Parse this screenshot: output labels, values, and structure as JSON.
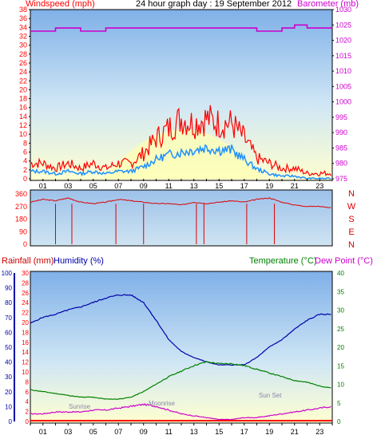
{
  "header": {
    "windspeed_label": "Windspeed (mph)",
    "title": "24 hour graph day : 19 September 2012",
    "barometer_label": "Barometer (mb)"
  },
  "mid_header": {
    "rainfall_label": "Rainfall (mm)",
    "humidity_label": "Humidity (%)",
    "temperature_label": "Temperature (°C)",
    "dewpoint_label": "Dew Point (°C)"
  },
  "annotations": {
    "sunrise": "Sunrise",
    "sunset": "Sun Set",
    "moonrise": "Moonrise",
    "sun_label": "Sun ",
    "sun_label2": "Rise"
  },
  "colors": {
    "wind_axis": "#ff0000",
    "baro_axis": "#cc00cc",
    "humidity": "#0000aa",
    "temperature": "#008000",
    "dewpoint": "#008000",
    "rain": "#cc00cc",
    "gust": "#ff0000",
    "avg_wind": "#1e90ff",
    "wind_dir": "#dd0000",
    "rain_bar": "#ff0000"
  },
  "chart_data": [
    {
      "type": "line",
      "name": "wind-barometer",
      "x_ticks": [
        "01",
        "03",
        "05",
        "07",
        "09",
        "11",
        "13",
        "15",
        "17",
        "19",
        "21",
        "23"
      ],
      "y_left_ticks": [
        0,
        2,
        4,
        6,
        8,
        10,
        12,
        14,
        16,
        18,
        20,
        22,
        24,
        26,
        28,
        30,
        32,
        34,
        36,
        38
      ],
      "y_right_ticks": [
        975,
        980,
        985,
        990,
        995,
        1000,
        1005,
        1010,
        1015,
        1020,
        1025,
        1030
      ],
      "ylim_left": [
        0,
        38
      ],
      "ylim_right": [
        975,
        1030
      ],
      "series": [
        {
          "name": "Gust",
          "x": [
            0,
            1,
            2,
            3,
            4,
            5,
            6,
            7,
            8,
            9,
            10,
            11,
            12,
            13,
            14,
            15,
            16,
            17,
            18,
            19,
            20,
            21,
            22,
            23,
            24
          ],
          "values": [
            3,
            3,
            2,
            3,
            2,
            3,
            2,
            3,
            3,
            5,
            8,
            10,
            12,
            11,
            12,
            11,
            11,
            8,
            4,
            3,
            2,
            2,
            1,
            1,
            1
          ]
        },
        {
          "name": "Average",
          "x": [
            0,
            1,
            2,
            3,
            4,
            5,
            6,
            7,
            8,
            9,
            10,
            11,
            12,
            13,
            14,
            15,
            16,
            17,
            18,
            19,
            20,
            21,
            22,
            23,
            24
          ],
          "values": [
            1.5,
            1.5,
            1,
            1.5,
            1,
            1.5,
            1,
            1.5,
            1.5,
            2.5,
            4,
            5,
            5.5,
            6,
            6.5,
            6,
            6,
            4,
            2,
            1,
            0.5,
            0.5,
            0,
            0,
            0
          ]
        },
        {
          "name": "Barometer",
          "x": [
            0,
            1,
            2,
            3,
            4,
            5,
            6,
            7,
            8,
            9,
            10,
            11,
            12,
            13,
            14,
            15,
            16,
            17,
            18,
            19,
            20,
            21,
            22,
            23,
            24
          ],
          "values": [
            1023,
            1023,
            1024,
            1024,
            1023,
            1023,
            1024,
            1024,
            1024,
            1024,
            1024,
            1024,
            1024,
            1024,
            1024,
            1024,
            1024,
            1024,
            1023,
            1023,
            1024,
            1025,
            1024,
            1024,
            1024
          ]
        }
      ]
    },
    {
      "type": "line",
      "name": "wind-direction",
      "y_ticks": [
        0,
        90,
        180,
        270,
        360
      ],
      "compass": [
        "N",
        "W",
        "S",
        "E",
        "N"
      ],
      "ylim": [
        0,
        360
      ],
      "series": [
        {
          "name": "Wind Direction",
          "x": [
            0,
            1,
            2,
            3,
            4,
            5,
            6,
            7,
            8,
            9,
            10,
            11,
            12,
            13,
            14,
            15,
            16,
            17,
            18,
            19,
            20,
            21,
            22,
            23,
            24
          ],
          "values": [
            300,
            320,
            310,
            330,
            300,
            290,
            300,
            320,
            310,
            300,
            290,
            290,
            280,
            300,
            290,
            300,
            310,
            300,
            320,
            330,
            300,
            280,
            270,
            270,
            260
          ]
        }
      ]
    },
    {
      "type": "line",
      "name": "rain-humidity-temperature",
      "y_rain_ticks": [
        0,
        2,
        4,
        6,
        8,
        10,
        12,
        14,
        16,
        18,
        20,
        22,
        24,
        26,
        28,
        30
      ],
      "y_humidity_ticks": [
        0,
        10,
        20,
        30,
        40,
        50,
        60,
        70,
        80,
        90,
        100
      ],
      "y_temp_ticks": [
        0,
        5,
        10,
        15,
        20,
        25,
        30,
        35,
        40
      ],
      "series": [
        {
          "name": "Humidity",
          "x": [
            0,
            1,
            2,
            3,
            4,
            5,
            6,
            7,
            8,
            9,
            10,
            11,
            12,
            13,
            14,
            15,
            16,
            17,
            18,
            19,
            20,
            21,
            22,
            23,
            24
          ],
          "values": [
            66,
            70,
            72,
            75,
            77,
            80,
            83,
            85,
            85,
            80,
            68,
            55,
            47,
            43,
            40,
            38,
            38,
            38,
            43,
            50,
            55,
            62,
            68,
            72,
            72
          ]
        },
        {
          "name": "Temperature",
          "x": [
            0,
            1,
            2,
            3,
            4,
            5,
            6,
            7,
            8,
            9,
            10,
            11,
            12,
            13,
            14,
            15,
            16,
            17,
            18,
            19,
            20,
            21,
            22,
            23,
            24
          ],
          "values": [
            8.5,
            8,
            7.5,
            7,
            6.5,
            6.5,
            6,
            6,
            6.5,
            8,
            10,
            12,
            13.5,
            15,
            16,
            15.5,
            15.5,
            15,
            14,
            13,
            12,
            11,
            10.5,
            9.5,
            9
          ]
        },
        {
          "name": "Dew Point",
          "x": [
            0,
            1,
            2,
            3,
            4,
            5,
            6,
            7,
            8,
            9,
            10,
            11,
            12,
            13,
            14,
            15,
            16,
            17,
            18,
            19,
            20,
            21,
            22,
            23,
            24
          ],
          "values": [
            2,
            2,
            2.5,
            2.5,
            2.5,
            3,
            3,
            3.5,
            4,
            4.5,
            4,
            3,
            2,
            1.5,
            1,
            0.5,
            0.5,
            1,
            1,
            1.5,
            2,
            2.5,
            3,
            3.5,
            4
          ]
        }
      ]
    }
  ]
}
